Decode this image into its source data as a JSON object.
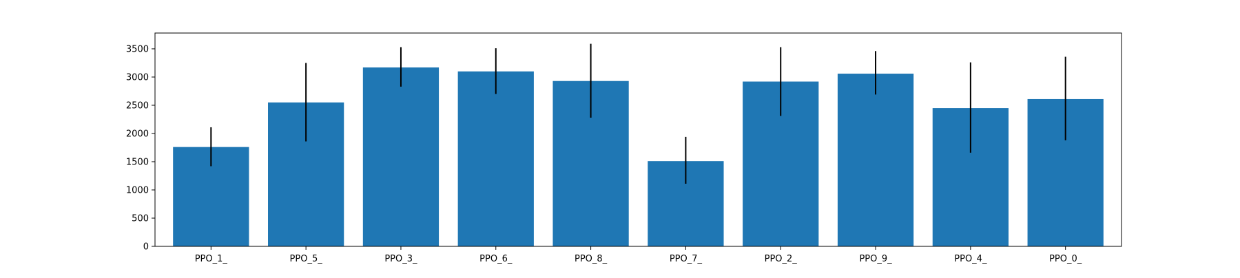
{
  "chart_data": {
    "type": "bar",
    "title": "",
    "xlabel": "",
    "ylabel": "",
    "categories": [
      "PPO_1_",
      "PPO_5_",
      "PPO_3_",
      "PPO_6_",
      "PPO_8_",
      "PPO_7_",
      "PPO_2_",
      "PPO_9_",
      "PPO_4_",
      "PPO_0_"
    ],
    "values": [
      1760,
      2550,
      3170,
      3100,
      2930,
      1510,
      2920,
      3060,
      2450,
      2610
    ],
    "error_low": [
      1420,
      1860,
      2830,
      2700,
      2280,
      1110,
      2310,
      2690,
      1660,
      1880
    ],
    "error_high": [
      2110,
      3250,
      3530,
      3510,
      3590,
      1940,
      3530,
      3460,
      3260,
      3360
    ],
    "yticks": [
      0,
      500,
      1000,
      1500,
      2000,
      2500,
      3000,
      3500
    ],
    "ylim": [
      0,
      3780
    ],
    "grid": false,
    "legend": "none",
    "colors": {
      "bar": "#1f77b4",
      "error": "#000000",
      "axis": "#000000"
    }
  }
}
